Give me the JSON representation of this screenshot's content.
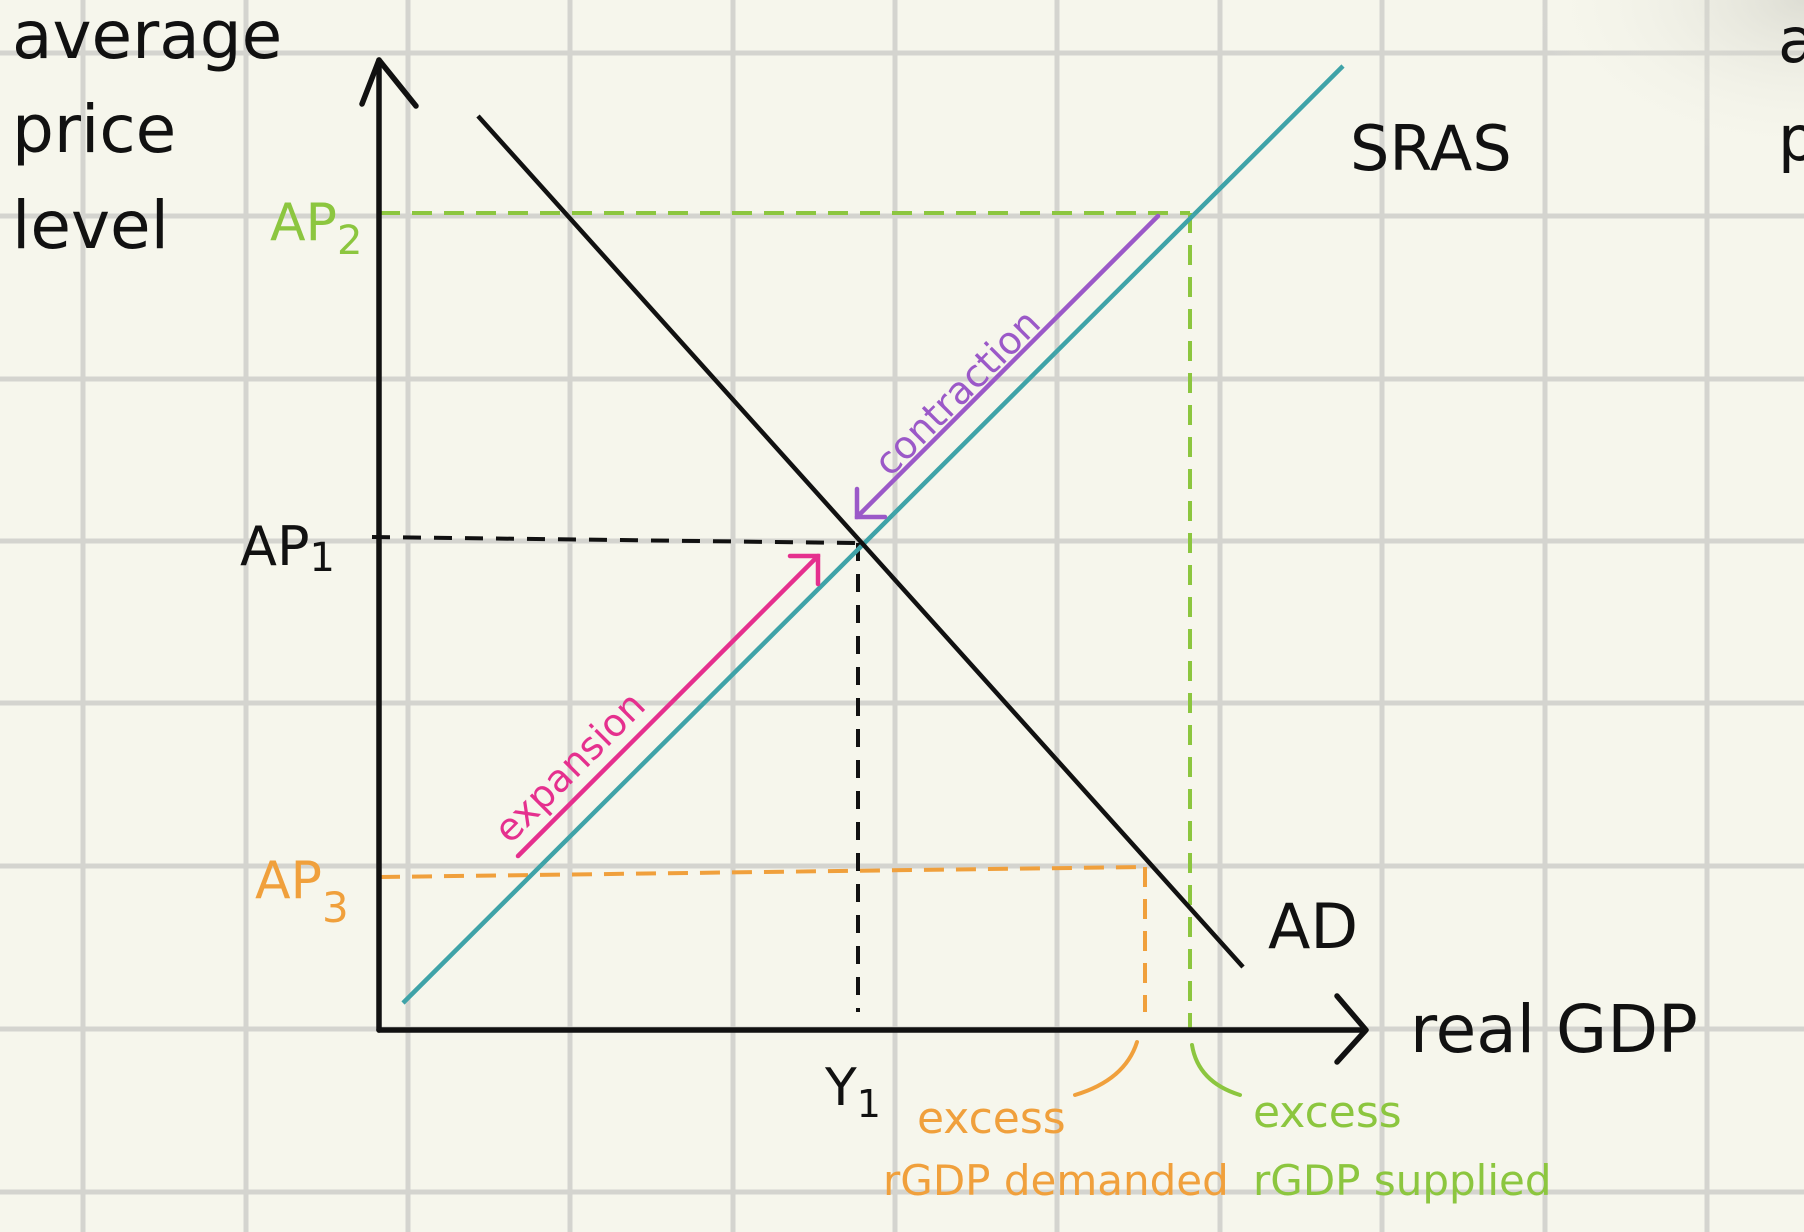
{
  "axes": {
    "y_label_lines": [
      "average",
      "price",
      "level"
    ],
    "x_label": "real  GDP"
  },
  "curves": {
    "sras_label": "SRAS",
    "ad_label": "AD"
  },
  "price_levels": {
    "ap1": "AP",
    "ap1_sub": "1",
    "ap2": "AP",
    "ap2_sub": "2",
    "ap3": "AP",
    "ap3_sub": "3"
  },
  "output": {
    "y1": "Y",
    "y1_sub": "1"
  },
  "arrows": {
    "expansion": "expansion",
    "contraction": "contraction"
  },
  "annotations": {
    "excess_demanded_line1": "excess",
    "excess_demanded_line2": "rGDP demanded",
    "excess_supplied_line1": "excess",
    "excess_supplied_line2": "rGDP supplied"
  },
  "edge_fragments": {
    "top_right": "a",
    "right_mid": "p"
  },
  "colors": {
    "background": "#f6f6ec",
    "grid": "#d4d4cf",
    "axis": "#111111",
    "sras": "#3fa3a8",
    "ad": "#111111",
    "ap2_green": "#8cc63f",
    "ap3_orange": "#f0a03c",
    "expansion_pink": "#e5308e",
    "contraction_purple": "#9b59c8",
    "guide_black": "#111111"
  }
}
